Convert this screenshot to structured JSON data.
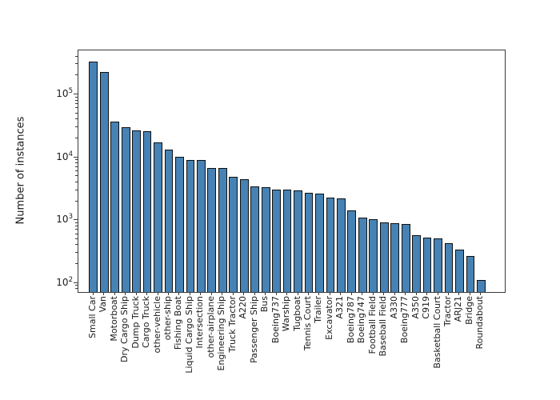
{
  "figure": {
    "background": "#ffffff"
  },
  "chart_data": {
    "type": "bar",
    "ylabel": "Number of instances",
    "yscale": "log",
    "ylim": [
      72,
      500000
    ],
    "grid": false,
    "legend": "none",
    "bar_color": "#4682b4",
    "bar_edge_color": "#101010",
    "axis_color": "#3a3a3a",
    "yticks": [
      {
        "base": "10",
        "exp": "2"
      },
      {
        "base": "10",
        "exp": "3"
      },
      {
        "base": "10",
        "exp": "4"
      },
      {
        "base": "10",
        "exp": "5"
      }
    ],
    "categories": [
      "Small Car",
      "Van",
      "Motorboat",
      "Dry Cargo Ship",
      "Dump Truck",
      "Cargo Truck",
      "other-vehicle",
      "other-ship",
      "Fishing Boat",
      "Liquid Cargo Ship",
      "Intersection",
      "other-airplane",
      "Engineering Ship",
      "Truck Tractor",
      "A220",
      "Passenger Ship",
      "Bus",
      "Boeing737",
      "Warship",
      "Tugboat",
      "Tennis Court",
      "Trailer",
      "Excavator",
      "A321",
      "Boeing787",
      "Boeing747",
      "Football Field",
      "Baseball Field",
      "A330",
      "Boeing777",
      "A350",
      "C919",
      "Basketball Court",
      "Tractor",
      "ARJ21",
      "Bridge",
      "Roundabout"
    ],
    "values": [
      335000,
      230000,
      36500,
      30000,
      26500,
      25600,
      17100,
      13400,
      10100,
      9100,
      9050,
      6800,
      6750,
      4840,
      4530,
      3440,
      3310,
      3090,
      3030,
      2970,
      2750,
      2620,
      2260,
      2190,
      1430,
      1100,
      1030,
      930,
      900,
      875,
      575,
      520,
      505,
      435,
      345,
      272,
      112
    ]
  }
}
